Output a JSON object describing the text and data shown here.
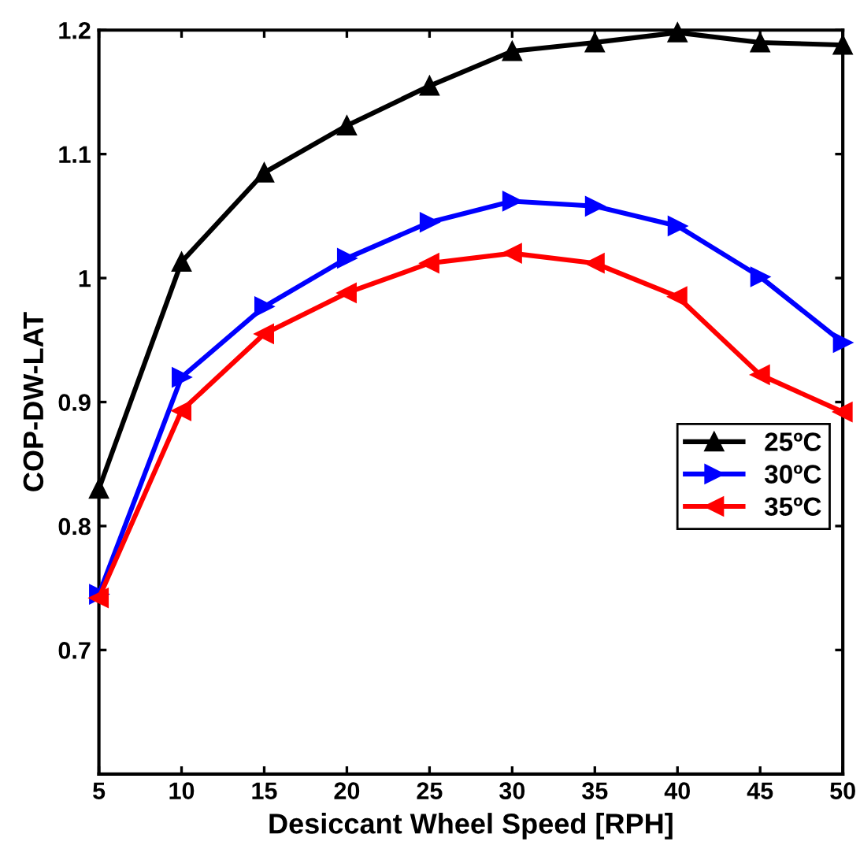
{
  "chart_data": {
    "type": "line",
    "xlabel": "Desiccant Wheel Speed [RPH]",
    "ylabel": "COP-DW-LAT",
    "x": [
      5,
      10,
      15,
      20,
      25,
      30,
      35,
      40,
      45,
      50
    ],
    "series": [
      {
        "name": "25ºC",
        "color": "#000000",
        "marker": "triangle",
        "values": [
          0.83,
          1.013,
          1.085,
          1.123,
          1.155,
          1.183,
          1.19,
          1.198,
          1.19,
          1.188
        ]
      },
      {
        "name": "30ºC",
        "color": "#0000ff",
        "marker": "triangle-right",
        "values": [
          0.745,
          0.92,
          0.977,
          1.016,
          1.045,
          1.062,
          1.058,
          1.042,
          1.001,
          0.948
        ]
      },
      {
        "name": "35ºC",
        "color": "#ff0000",
        "marker": "triangle-left",
        "values": [
          0.742,
          0.893,
          0.955,
          0.988,
          1.012,
          1.02,
          1.012,
          0.985,
          0.922,
          0.892
        ]
      }
    ],
    "xlim": [
      5,
      50
    ],
    "ylim": [
      0.6,
      1.2
    ],
    "xticks": [
      5,
      10,
      15,
      20,
      25,
      30,
      35,
      40,
      45,
      50
    ],
    "yticks": [
      {
        "value": 0.6,
        "label": null
      },
      0.7,
      0.8,
      0.9,
      1,
      1.1,
      1.2
    ],
    "grid": false,
    "legend": "center right",
    "line_style": "solid"
  }
}
